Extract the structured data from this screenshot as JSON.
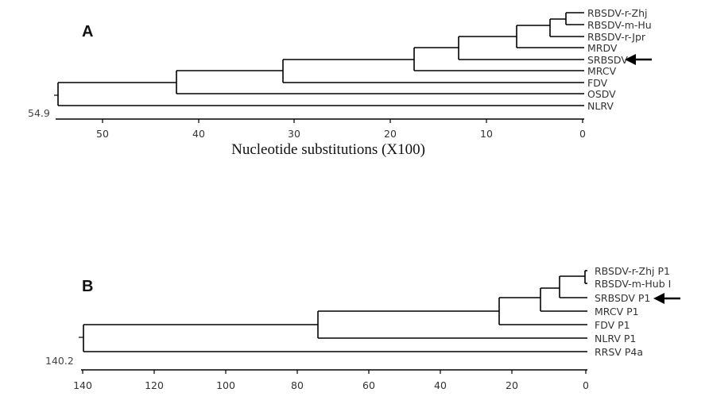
{
  "panels": [
    {
      "id": "A",
      "label": "A",
      "root_value": "54.9",
      "axis_ticks": [
        "50",
        "40",
        "30",
        "20",
        "10",
        "0"
      ],
      "axis_label": "Nucleotide substitutions (X100)",
      "taxa": [
        "RBSDV-r-Zhj",
        "RBSDV-m-Hu",
        "RBSDV-r-Jpr",
        "MRDV",
        "SRBSDV",
        "MRCV",
        "FDV",
        "OSDV",
        "NLRV"
      ],
      "highlighted_taxon": "SRBSDV"
    },
    {
      "id": "B",
      "label": "B",
      "root_value": "140.2",
      "axis_ticks": [
        "140",
        "120",
        "100",
        "80",
        "60",
        "40",
        "20",
        "0"
      ],
      "axis_label": "",
      "taxa": [
        "RBSDV-r-Zhj P1",
        "RBSDV-m-Hub I",
        "SRBSDV P1",
        "MRCV P1",
        "FDV P1",
        "NLRV P1",
        "RRSV P4a"
      ],
      "highlighted_taxon": "SRBSDV P1"
    }
  ],
  "colors": {
    "lines": "#000000",
    "text": "#333333"
  },
  "icons": {
    "pointer": "arrow-left-icon"
  }
}
